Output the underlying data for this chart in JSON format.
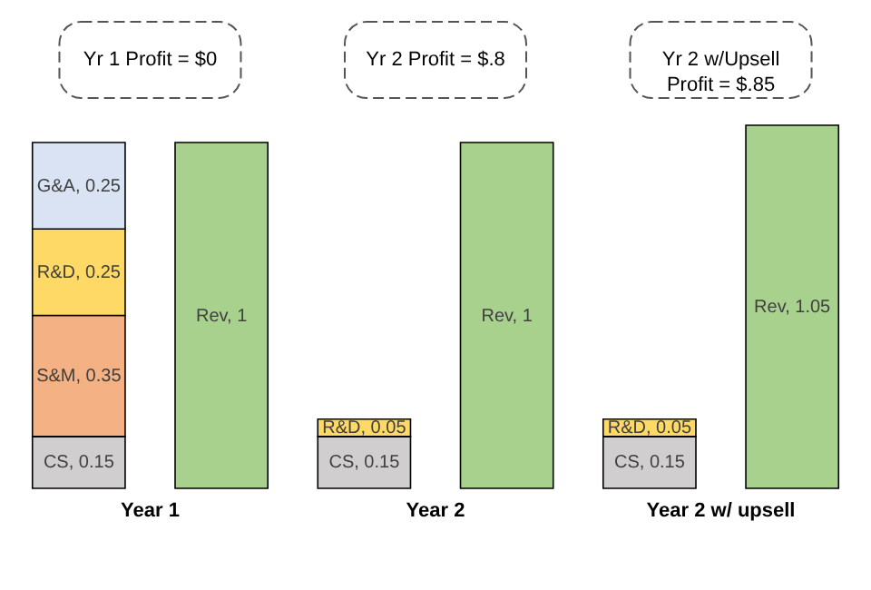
{
  "chart_data": {
    "type": "bar",
    "stacked": true,
    "categories": [
      "Year 1",
      null,
      "Year 2",
      null,
      "Year 2 w/ upsell",
      null
    ],
    "series": [
      {
        "color": "#d0cece",
        "values": [
          0.15,
          null,
          0.15,
          null,
          0.15,
          null
        ],
        "value_labels": [
          "CS, 0.15",
          null,
          "CS, 0.15",
          null,
          "CS, 0.15",
          null
        ]
      },
      {
        "color": "#f4b183",
        "values": [
          0.35,
          null,
          null,
          null,
          null,
          null
        ],
        "value_labels": [
          "S&M, 0.35",
          null,
          null,
          null,
          null,
          null
        ]
      },
      {
        "color": "#ffd966",
        "values": [
          0.25,
          null,
          0.05,
          null,
          0.05,
          null
        ],
        "value_labels": [
          "R&D, 0.25",
          null,
          "R&D, 0.05",
          null,
          "R&D, 0.05",
          null
        ]
      },
      {
        "color": "#dae3f3",
        "values": [
          0.25,
          null,
          null,
          null,
          null,
          null
        ],
        "value_labels": [
          "G&A, 0.25",
          null,
          null,
          null,
          null,
          null
        ]
      },
      {
        "color": "#a9d18e",
        "values": [
          null,
          1,
          null,
          1,
          null,
          1.05
        ],
        "value_labels": [
          null,
          "Rev, 1",
          null,
          "Rev, 1",
          null,
          "Rev, 1.05"
        ]
      }
    ],
    "annotations": [
      "Yr 1 Profit = $0",
      "Yr 2 Profit = $.8",
      "Yr 2 w/Upsell\nProfit = $.85"
    ],
    "grid": false,
    "legend": false
  }
}
